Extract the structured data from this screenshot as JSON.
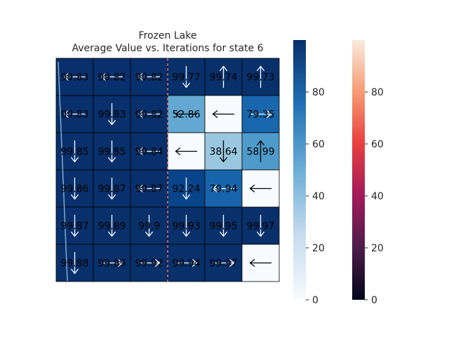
{
  "chart_data": {
    "type": "heatmap",
    "title": "Frozen Lake",
    "subtitle": "Average Value vs. Iterations for state 6",
    "grid": [
      [
        {
          "v": "99.83",
          "a": "left"
        },
        {
          "v": "99.82",
          "a": "left"
        },
        {
          "v": "99.82",
          "a": "left"
        },
        {
          "v": "99.77",
          "a": "down"
        },
        {
          "v": "99.74",
          "a": "up"
        },
        {
          "v": "99.73",
          "a": "up"
        }
      ],
      [
        {
          "v": "99.83",
          "a": "left"
        },
        {
          "v": "99.83",
          "a": "down"
        },
        {
          "v": "99.82",
          "a": "left"
        },
        {
          "v": "52.86",
          "a": "left"
        },
        {
          "v": "",
          "a": "left"
        },
        {
          "v": "79.35",
          "a": "right"
        }
      ],
      [
        {
          "v": "99.85",
          "a": "down"
        },
        {
          "v": "99.85",
          "a": "down"
        },
        {
          "v": "99.84",
          "a": "left"
        },
        {
          "v": "",
          "a": "left"
        },
        {
          "v": "38.64",
          "a": "down"
        },
        {
          "v": "58.99",
          "a": "up"
        }
      ],
      [
        {
          "v": "99.86",
          "a": "down"
        },
        {
          "v": "99.87",
          "a": "down"
        },
        {
          "v": "99.87",
          "a": "left"
        },
        {
          "v": "92.24",
          "a": "down"
        },
        {
          "v": "79.94",
          "a": "left"
        },
        {
          "v": "",
          "a": "left"
        }
      ],
      [
        {
          "v": "99.87",
          "a": "down"
        },
        {
          "v": "99.89",
          "a": "down"
        },
        {
          "v": "99.9",
          "a": "down"
        },
        {
          "v": "99.93",
          "a": "down"
        },
        {
          "v": "99.95",
          "a": "down"
        },
        {
          "v": "99.97",
          "a": "down"
        }
      ],
      [
        {
          "v": "99.88",
          "a": "down"
        },
        {
          "v": "99.89",
          "a": "right"
        },
        {
          "v": "99.92",
          "a": "right"
        },
        {
          "v": "99.94",
          "a": "right"
        },
        {
          "v": "99.97",
          "a": "right"
        },
        {
          "v": "",
          "a": "left"
        }
      ]
    ],
    "colorbar_blues": {
      "range": [
        0,
        100
      ],
      "ticks": [
        "0",
        "20",
        "40",
        "60",
        "80"
      ]
    },
    "colorbar_rocket": {
      "range": [
        0,
        100
      ],
      "ticks": [
        "0",
        "20",
        "40",
        "60",
        "80"
      ]
    },
    "divider_color": "#e06c6c"
  }
}
